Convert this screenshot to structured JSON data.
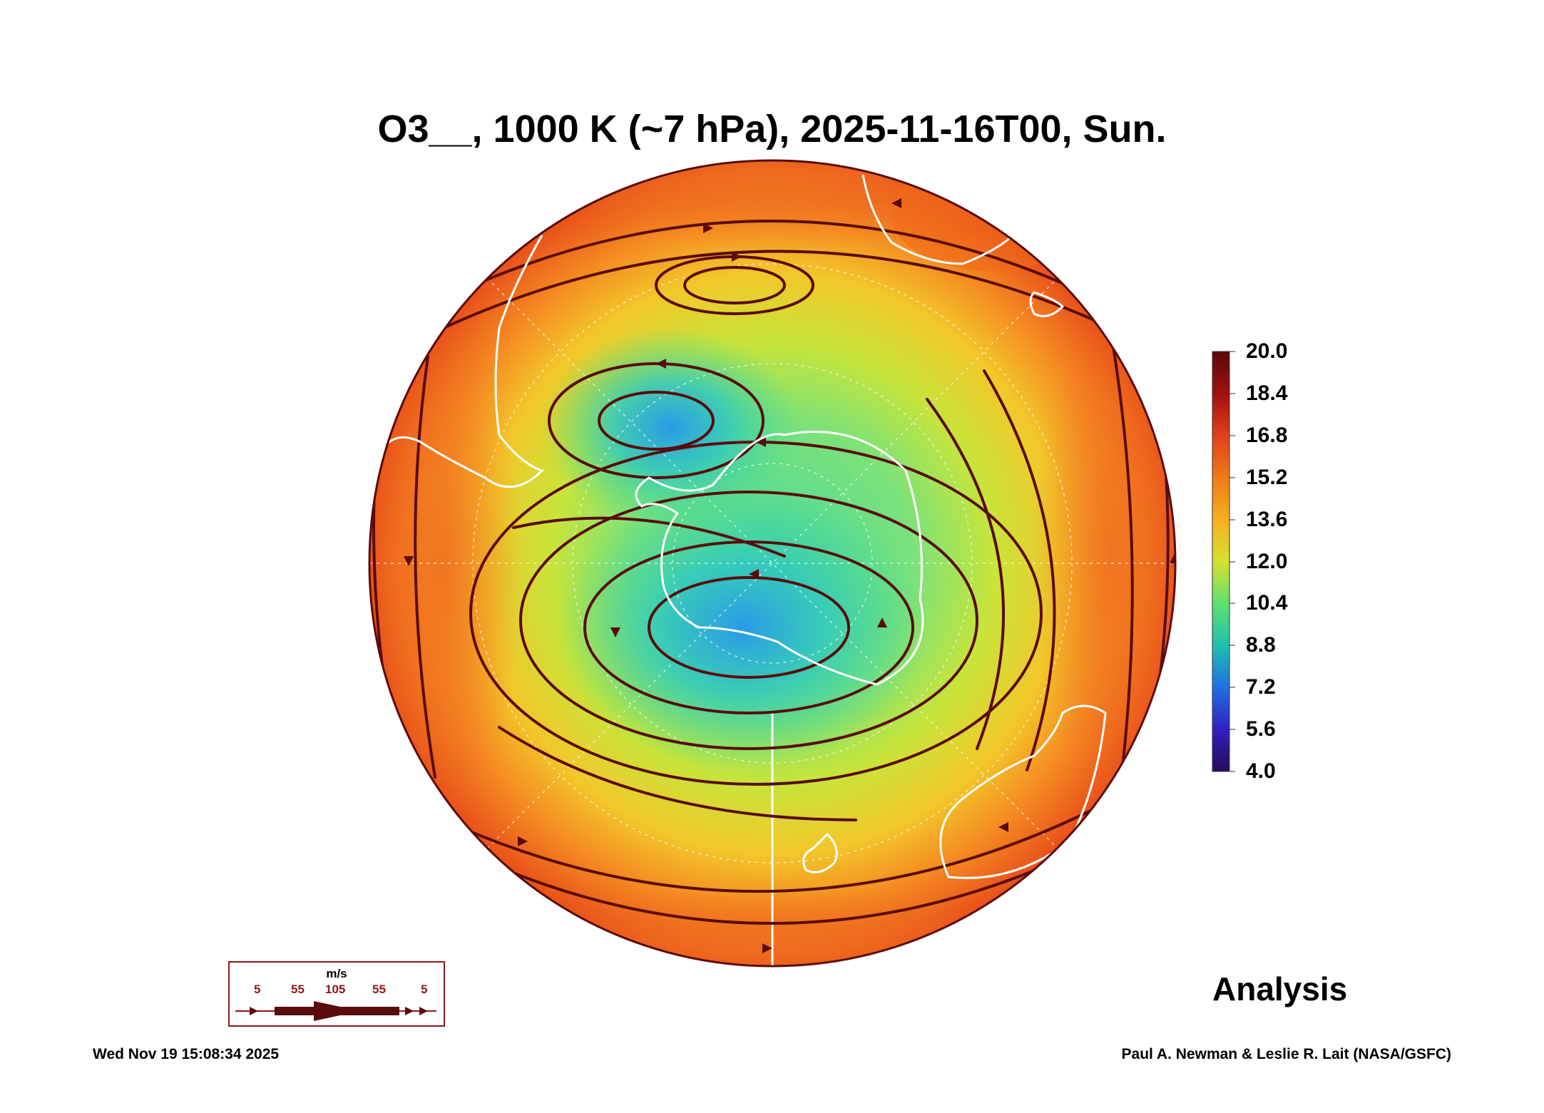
{
  "title": "O3__, 1000 K (~7 hPa), 2025-11-16T00, Sun.",
  "colorbar": {
    "labels": [
      "20.0",
      "18.4",
      "16.8",
      "15.2",
      "13.6",
      "12.0",
      "10.4",
      "8.8",
      "7.2",
      "5.6",
      "4.0"
    ],
    "colors": [
      "#5a0a0a",
      "#a01010",
      "#e0401a",
      "#f06a18",
      "#f5a020",
      "#e8d830",
      "#b8e040",
      "#60e070",
      "#20c0b0",
      "#2070e0",
      "#3020c0",
      "#2a0a5a"
    ]
  },
  "wind_legend": {
    "unit": "m/s",
    "values": [
      "5",
      "55",
      "105",
      "55",
      "5"
    ]
  },
  "label": "Analysis",
  "timestamp": "Wed Nov 19 15:08:34 2025",
  "credit": "Paul A. Newman & Leslie R. Lait (NASA/GSFC)",
  "icons": [
    "streamline-arrow-icon",
    "coastline-outline-icon"
  ]
}
